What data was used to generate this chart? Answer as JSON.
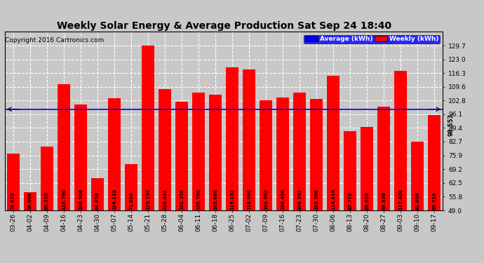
{
  "title": "Weekly Solar Energy & Average Production Sat Sep 24 18:40",
  "copyright": "Copyright 2016 Cartronics.com",
  "categories": [
    "03-26",
    "04-02",
    "04-09",
    "04-16",
    "04-23",
    "04-30",
    "05-07",
    "05-14",
    "05-21",
    "05-28",
    "06-04",
    "06-11",
    "06-18",
    "06-25",
    "07-02",
    "07-09",
    "07-16",
    "07-23",
    "07-30",
    "08-06",
    "08-13",
    "08-20",
    "08-27",
    "09-03",
    "09-10",
    "09-17"
  ],
  "values": [
    76.872,
    58.008,
    80.31,
    110.79,
    100.906,
    64.858,
    104.118,
    71.606,
    129.734,
    108.442,
    102.358,
    106.766,
    105.668,
    119.102,
    118.098,
    102.902,
    104.456,
    106.592,
    103.506,
    114.816,
    87.772,
    89.926,
    99.936,
    117.426,
    82.606,
    95.714
  ],
  "average": 98.553,
  "ylim_min": 49.0,
  "ylim_max": 136.6,
  "yticks": [
    49.0,
    55.8,
    62.5,
    69.2,
    75.9,
    82.7,
    89.4,
    96.1,
    102.8,
    109.6,
    116.3,
    123.0,
    129.7
  ],
  "bar_color": "#FF0000",
  "avg_line_color": "#0000FF",
  "background_color": "#C8C8C8",
  "plot_bg_color": "#C8C8C8",
  "grid_color": "white",
  "legend_avg_color": "#0000FF",
  "legend_weekly_color": "#FF0000",
  "avg_label": "Average (kWh)",
  "weekly_label": "Weekly (kWh)",
  "title_fontsize": 10,
  "copyright_fontsize": 6.5,
  "tick_fontsize": 6.5,
  "bar_label_fontsize": 4.8,
  "avg_text_fontsize": 6.0
}
